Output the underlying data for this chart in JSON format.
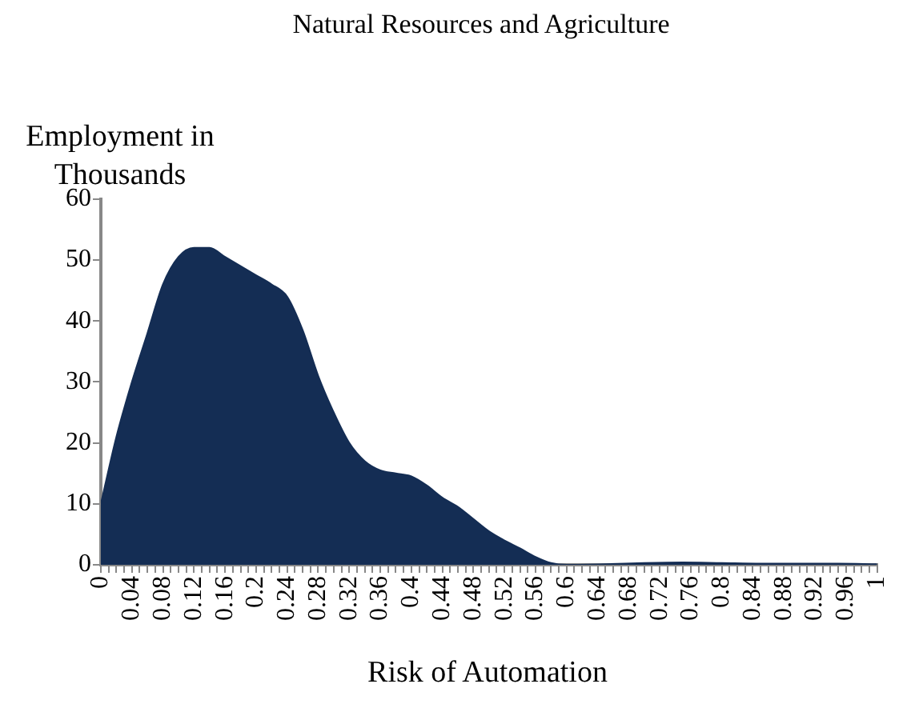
{
  "chart_data": {
    "type": "area",
    "title": "Natural Resources and Agriculture",
    "xlabel": "Risk of Automation",
    "ylabel": "Employment in Thousands",
    "x": [
      0,
      0.02,
      0.04,
      0.06,
      0.08,
      0.1,
      0.12,
      0.14,
      0.16,
      0.18,
      0.2,
      0.22,
      0.24,
      0.26,
      0.28,
      0.3,
      0.32,
      0.34,
      0.36,
      0.38,
      0.4,
      0.42,
      0.44,
      0.46,
      0.48,
      0.5,
      0.52,
      0.54,
      0.56,
      0.58,
      0.6,
      0.65,
      0.7,
      0.75,
      0.8,
      0.85,
      0.9,
      0.95,
      1
    ],
    "series": [
      {
        "color": "#142d54",
        "values": [
          10,
          21,
          30,
          38,
          46,
          50.5,
          52,
          52,
          50.5,
          49,
          47.5,
          46,
          44,
          38.5,
          31,
          25,
          20,
          17,
          15.5,
          15,
          14.5,
          13,
          11,
          9.5,
          7.5,
          5.5,
          4,
          2.7,
          1.3,
          0.3,
          0,
          0.1,
          0.3,
          0.4,
          0.3,
          0.2,
          0.2,
          0.2,
          0.1
        ]
      }
    ],
    "xlim": [
      0,
      1
    ],
    "ylim": [
      0,
      60
    ],
    "yticks": [
      0,
      10,
      20,
      30,
      40,
      50,
      60
    ],
    "xticks": [
      0,
      {
        "value": 0.01,
        "label": null
      },
      {
        "value": 0.02,
        "label": null
      },
      {
        "value": 0.03,
        "label": null
      },
      0.04,
      {
        "value": 0.05,
        "label": null
      },
      {
        "value": 0.06,
        "label": null
      },
      {
        "value": 0.07,
        "label": null
      },
      0.08,
      {
        "value": 0.09,
        "label": null
      },
      {
        "value": 0.1,
        "label": null
      },
      {
        "value": 0.11,
        "label": null
      },
      0.12,
      {
        "value": 0.13,
        "label": null
      },
      {
        "value": 0.14,
        "label": null
      },
      {
        "value": 0.15,
        "label": null
      },
      0.16,
      {
        "value": 0.17,
        "label": null
      },
      {
        "value": 0.18,
        "label": null
      },
      {
        "value": 0.19,
        "label": null
      },
      0.2,
      {
        "value": 0.21,
        "label": null
      },
      {
        "value": 0.22,
        "label": null
      },
      {
        "value": 0.23,
        "label": null
      },
      0.24,
      {
        "value": 0.25,
        "label": null
      },
      {
        "value": 0.26,
        "label": null
      },
      {
        "value": 0.27,
        "label": null
      },
      0.28,
      {
        "value": 0.29,
        "label": null
      },
      {
        "value": 0.3,
        "label": null
      },
      {
        "value": 0.31,
        "label": null
      },
      0.32,
      {
        "value": 0.33,
        "label": null
      },
      {
        "value": 0.34,
        "label": null
      },
      {
        "value": 0.35,
        "label": null
      },
      0.36,
      {
        "value": 0.37,
        "label": null
      },
      {
        "value": 0.38,
        "label": null
      },
      {
        "value": 0.39,
        "label": null
      },
      0.4,
      {
        "value": 0.41,
        "label": null
      },
      {
        "value": 0.42,
        "label": null
      },
      {
        "value": 0.43,
        "label": null
      },
      0.44,
      {
        "value": 0.45,
        "label": null
      },
      {
        "value": 0.46,
        "label": null
      },
      {
        "value": 0.47,
        "label": null
      },
      0.48,
      {
        "value": 0.49,
        "label": null
      },
      {
        "value": 0.5,
        "label": null
      },
      {
        "value": 0.51,
        "label": null
      },
      0.52,
      {
        "value": 0.53,
        "label": null
      },
      {
        "value": 0.54,
        "label": null
      },
      {
        "value": 0.55,
        "label": null
      },
      0.56,
      {
        "value": 0.57,
        "label": null
      },
      {
        "value": 0.58,
        "label": null
      },
      {
        "value": 0.59,
        "label": null
      },
      0.6,
      {
        "value": 0.61,
        "label": null
      },
      {
        "value": 0.62,
        "label": null
      },
      {
        "value": 0.63,
        "label": null
      },
      0.64,
      {
        "value": 0.65,
        "label": null
      },
      {
        "value": 0.66,
        "label": null
      },
      {
        "value": 0.67,
        "label": null
      },
      0.68,
      {
        "value": 0.69,
        "label": null
      },
      {
        "value": 0.7,
        "label": null
      },
      {
        "value": 0.71,
        "label": null
      },
      0.72,
      {
        "value": 0.73,
        "label": null
      },
      {
        "value": 0.74,
        "label": null
      },
      {
        "value": 0.75,
        "label": null
      },
      0.76,
      {
        "value": 0.77,
        "label": null
      },
      {
        "value": 0.78,
        "label": null
      },
      {
        "value": 0.79,
        "label": null
      },
      0.8,
      {
        "value": 0.81,
        "label": null
      },
      {
        "value": 0.82,
        "label": null
      },
      {
        "value": 0.83,
        "label": null
      },
      0.84,
      {
        "value": 0.85,
        "label": null
      },
      {
        "value": 0.86,
        "label": null
      },
      {
        "value": 0.87,
        "label": null
      },
      0.88,
      {
        "value": 0.89,
        "label": null
      },
      {
        "value": 0.9,
        "label": null
      },
      {
        "value": 0.91,
        "label": null
      },
      0.92,
      {
        "value": 0.93,
        "label": null
      },
      {
        "value": 0.94,
        "label": null
      },
      {
        "value": 0.95,
        "label": null
      },
      0.96,
      {
        "value": 0.97,
        "label": null
      },
      {
        "value": 0.98,
        "label": null
      },
      {
        "value": 0.99,
        "label": null
      },
      1
    ],
    "grid": false,
    "legend": false,
    "marker": "none"
  }
}
